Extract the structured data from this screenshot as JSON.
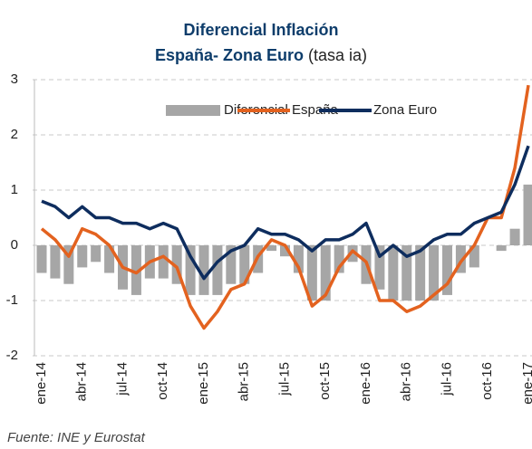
{
  "chart_data": {
    "type": "bar_line",
    "title": "Diferencial Inflación",
    "subtitle": "España- Zona Euro",
    "subtitle_note": "(tasa ia)",
    "source": "Fuente: INE y Eurostat",
    "categories": [
      "ene-14",
      null,
      null,
      "abr-14",
      null,
      null,
      "jul-14",
      null,
      null,
      "oct-14",
      null,
      null,
      "ene-15",
      null,
      null,
      "abr-15",
      null,
      null,
      "jul-15",
      null,
      null,
      "oct-15",
      null,
      null,
      "ene-16",
      null,
      null,
      "abr-16",
      null,
      null,
      "jul-16",
      null,
      null,
      "oct-16",
      null,
      null,
      "ene-17"
    ],
    "series": [
      {
        "name": "Diferencial",
        "kind": "bar",
        "color": "#a6a6a6",
        "values": [
          -0.5,
          -0.6,
          -0.7,
          -0.4,
          -0.3,
          -0.5,
          -0.8,
          -0.9,
          -0.6,
          -0.6,
          -0.7,
          -0.9,
          -0.9,
          -0.9,
          -0.7,
          -0.7,
          -0.5,
          -0.1,
          -0.2,
          -0.5,
          -1.0,
          -1.0,
          -0.5,
          -0.3,
          -0.7,
          -0.8,
          -1.0,
          -1.0,
          -1.0,
          -1.0,
          -0.9,
          -0.5,
          -0.4,
          0.0,
          -0.1,
          0.3,
          1.1
        ]
      },
      {
        "name": "España",
        "kind": "line",
        "color": "#e3621f",
        "values": [
          0.3,
          0.1,
          -0.2,
          0.3,
          0.2,
          0.0,
          -0.4,
          -0.5,
          -0.3,
          -0.2,
          -0.4,
          -1.1,
          -1.5,
          -1.2,
          -0.8,
          -0.7,
          -0.2,
          0.1,
          0.0,
          -0.4,
          -1.1,
          -0.9,
          -0.4,
          -0.1,
          -0.3,
          -1.0,
          -1.0,
          -1.2,
          -1.1,
          -0.9,
          -0.7,
          -0.3,
          0.0,
          0.5,
          0.5,
          1.4,
          2.9
        ]
      },
      {
        "name": "Zona Euro",
        "kind": "line",
        "color": "#0e2d5e",
        "values": [
          0.8,
          0.7,
          0.5,
          0.7,
          0.5,
          0.5,
          0.4,
          0.4,
          0.3,
          0.4,
          0.3,
          -0.2,
          -0.6,
          -0.3,
          -0.1,
          0.0,
          0.3,
          0.2,
          0.2,
          0.1,
          -0.1,
          0.1,
          0.1,
          0.2,
          0.4,
          -0.2,
          0.0,
          -0.2,
          -0.1,
          0.1,
          0.2,
          0.2,
          0.4,
          0.5,
          0.6,
          1.1,
          1.8
        ]
      }
    ],
    "ylim": [
      -2,
      3
    ],
    "yticks": [
      -2,
      -1,
      0,
      1,
      2,
      3
    ],
    "grid": true,
    "legend": "top"
  }
}
